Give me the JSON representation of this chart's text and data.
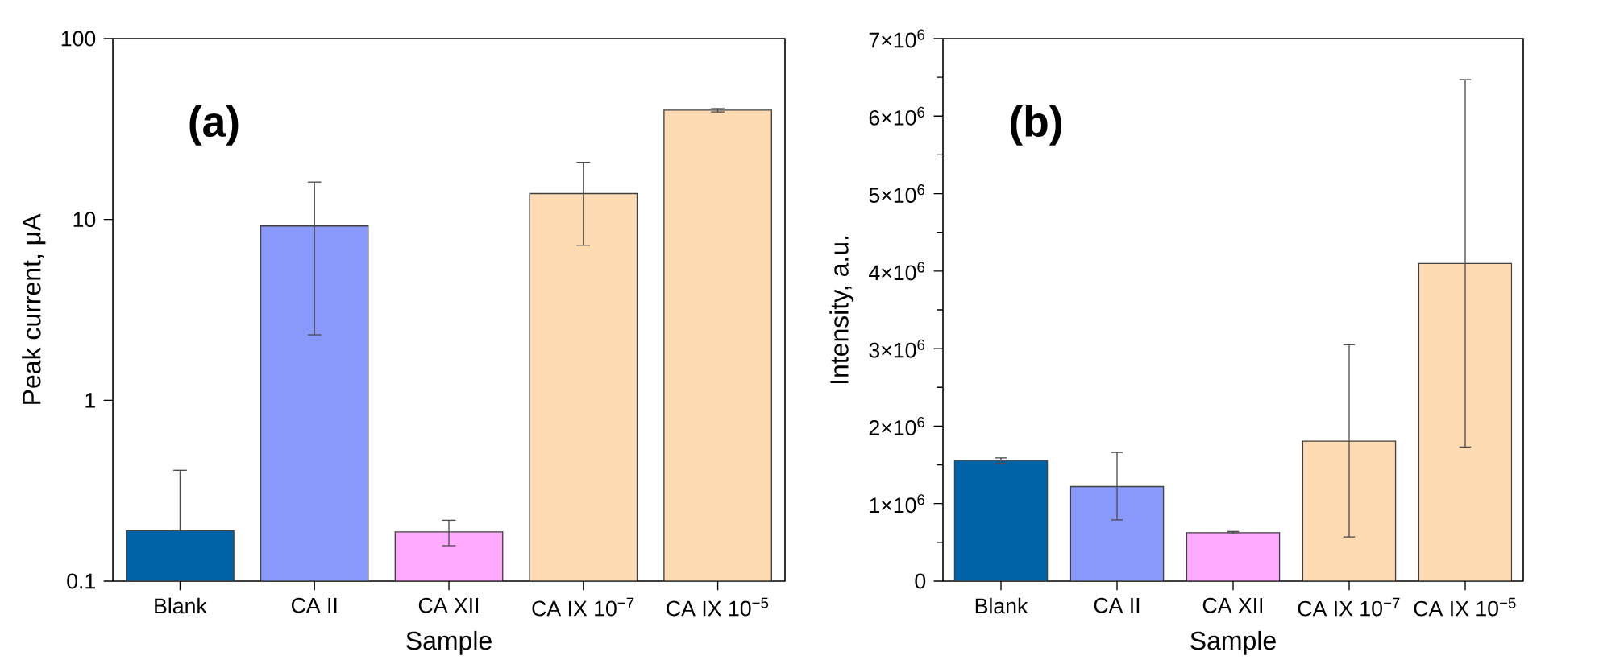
{
  "chart_data": [
    {
      "type": "bar",
      "title": "(a)",
      "xlabel": "Sample",
      "ylabel": "Peak current, μA",
      "log": true,
      "categories": [
        "Blank",
        "CA II",
        "CA XII",
        "CA IX 10$^{−7}$",
        "CA IX 10$^{−5}$"
      ],
      "values": [
        0.19,
        9.2,
        0.187,
        13.9,
        40.2
      ],
      "errors": [
        [
          0.19,
          0.41
        ],
        [
          2.3,
          16.1
        ],
        [
          0.157,
          0.217
        ],
        [
          7.2,
          20.7
        ],
        [
          39.3,
          41
        ]
      ],
      "colors": [
        "#0063a8",
        "#8899fb",
        "#ffaaff",
        "#ffdbb3",
        "#ffdbb3"
      ],
      "ylim": [
        0.1,
        100
      ],
      "yticks": [
        0.1,
        1,
        10,
        100
      ]
    },
    {
      "type": "bar",
      "title": "(b)",
      "xlabel": "Sample",
      "ylabel": "Intensity, a.u.",
      "categories": [
        "Blank",
        "CA II",
        "CA XII",
        "CA IX 10$^{−7}$",
        "CA IX 10$^{−5}$"
      ],
      "values": [
        1556000,
        1220000,
        625000,
        1806000,
        4100000
      ],
      "errors": [
        [
          1520000,
          1590000
        ],
        [
          790000,
          1660000
        ],
        [
          610000,
          640000
        ],
        [
          570000,
          3050000
        ],
        [
          1730000,
          6470000
        ]
      ],
      "colors": [
        "#0063a8",
        "#8899fb",
        "#ffaaff",
        "#ffdbb3",
        "#ffdbb3"
      ],
      "ylim": [
        0,
        7000000
      ],
      "yticks": [
        0,
        {
          "value": 1000000,
          "label": "1×10$^{6}$"
        },
        {
          "value": 2000000,
          "label": "2×10$^{6}$"
        },
        {
          "value": 3000000,
          "label": "3×10$^{6}$"
        },
        {
          "value": 4000000,
          "label": "4×10$^{6}$"
        },
        {
          "value": 5000000,
          "label": "5×10$^{6}$"
        },
        {
          "value": 6000000,
          "label": "6×10$^{6}$"
        },
        {
          "value": 7000000,
          "label": "7×10$^{6}$"
        }
      ]
    }
  ]
}
